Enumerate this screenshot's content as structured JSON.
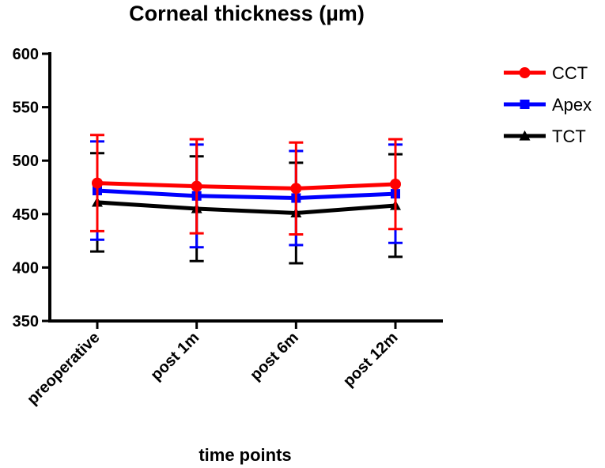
{
  "chart_data": {
    "type": "line",
    "title": "Corneal thickness (µm)",
    "xlabel": "time points",
    "ylabel": "",
    "ylim": [
      350,
      600
    ],
    "yticks": [
      "350",
      "400",
      "450",
      "500",
      "550",
      "600"
    ],
    "categories": [
      "preoperative",
      "post 1m",
      "post 6m",
      "post 12m"
    ],
    "series": [
      {
        "name": "CCT",
        "color": "#ff0000",
        "marker": "circle",
        "values": [
          479,
          476,
          474,
          478
        ],
        "errors": [
          45,
          44,
          43,
          42
        ]
      },
      {
        "name": "Apex",
        "color": "#0000ff",
        "marker": "square",
        "values": [
          472,
          467,
          465,
          469
        ],
        "errors": [
          46,
          48,
          44,
          46
        ]
      },
      {
        "name": "TCT",
        "color": "#000000",
        "marker": "triangle",
        "values": [
          461,
          455,
          451,
          458
        ],
        "errors": [
          46,
          49,
          47,
          48
        ]
      }
    ],
    "legend_position": "right"
  }
}
